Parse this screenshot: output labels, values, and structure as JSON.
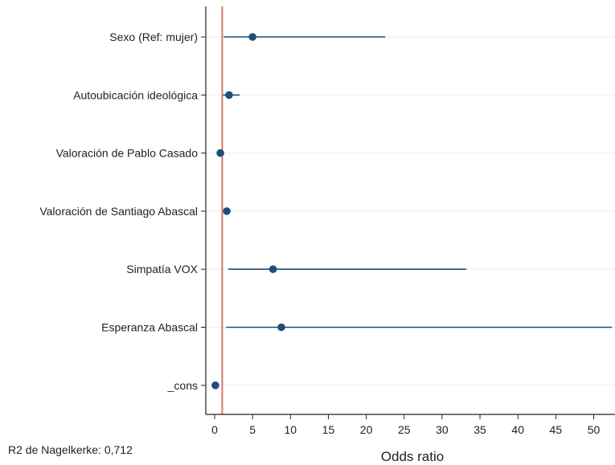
{
  "chart_data": {
    "type": "scatter",
    "subtype": "coefficient-plot-with-confidence-intervals",
    "xlabel": "Odds ratio",
    "xlim": [
      -1.3,
      52.5
    ],
    "xticks": [
      0,
      5,
      10,
      15,
      20,
      25,
      30,
      35,
      40,
      45,
      50
    ],
    "reference_line": {
      "x": 1,
      "color": "#d9746a"
    },
    "grid": "horizontal",
    "marker_color": "#1f4e79",
    "categories": [
      "Sexo (Ref: mujer)",
      "Autoubicación ideológica",
      "Valoración de Pablo Casado",
      "Valoración de Santiago Abascal",
      "Simpatía VOX",
      "Esperanza Abascal",
      "_cons"
    ],
    "estimates": [
      5.0,
      1.9,
      0.75,
      1.6,
      7.7,
      8.8,
      0.1
    ],
    "ci_low": [
      1.2,
      1.1,
      0.4,
      1.2,
      1.8,
      1.5,
      0.02
    ],
    "ci_high": [
      22.5,
      3.3,
      1.2,
      2.1,
      33.2,
      52.4,
      0.3
    ]
  },
  "note": "R2 de Nagelkerke: 0,712"
}
